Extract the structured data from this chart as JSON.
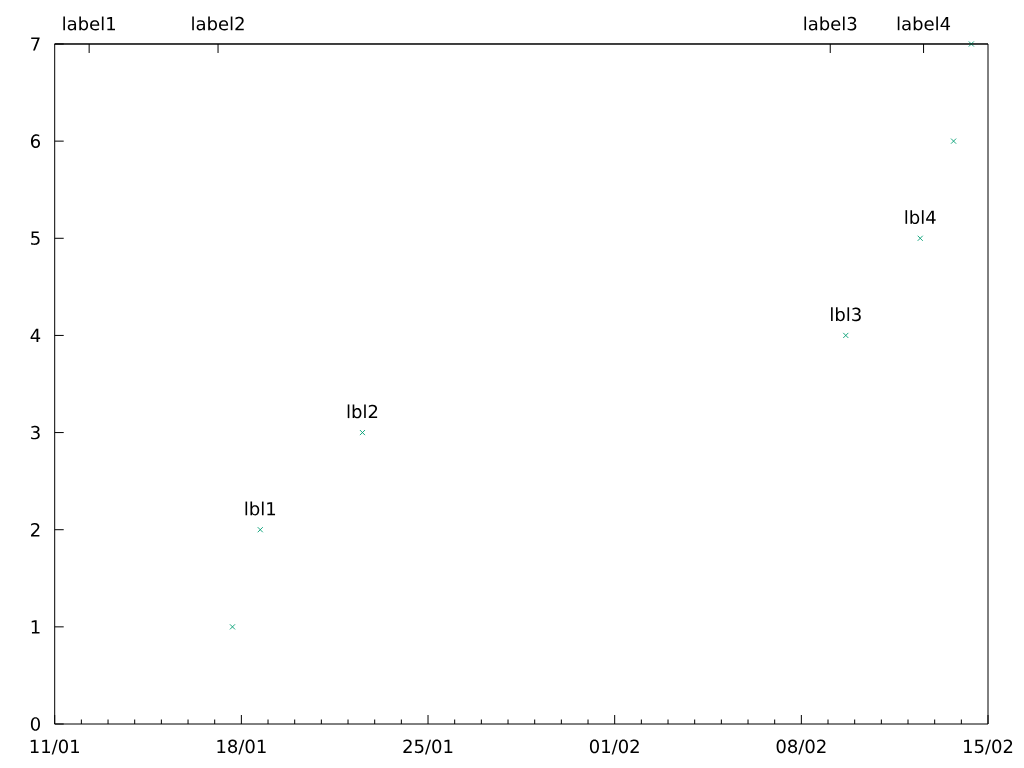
{
  "chart_data": {
    "type": "scatter",
    "x": [
      "--01-17T16:00",
      "--01-18T17:00",
      "--01-22T13:00",
      "--02-09T16:00",
      "--02-12T11:00",
      "--02-13T17:00",
      "--02-14T09:00"
    ],
    "values": [
      1,
      2,
      3,
      4,
      5,
      6,
      7
    ],
    "color": "#009e73",
    "marker": "cross",
    "xlim": [
      "--01-11",
      "--02-15"
    ],
    "xticks": [
      {
        "value": "--01-11",
        "label": "11/01"
      },
      {
        "value": "--01-12",
        "label": null
      },
      {
        "value": "--01-13",
        "label": null
      },
      {
        "value": "--01-14",
        "label": null
      },
      {
        "value": "--01-15",
        "label": null
      },
      {
        "value": "--01-16",
        "label": null
      },
      {
        "value": "--01-17",
        "label": null
      },
      {
        "value": "--01-18",
        "label": "18/01"
      },
      {
        "value": "--01-19",
        "label": null
      },
      {
        "value": "--01-20",
        "label": null
      },
      {
        "value": "--01-21",
        "label": null
      },
      {
        "value": "--01-22",
        "label": null
      },
      {
        "value": "--01-23",
        "label": null
      },
      {
        "value": "--01-24",
        "label": null
      },
      {
        "value": "--01-25",
        "label": "25/01"
      },
      {
        "value": "--01-26",
        "label": null
      },
      {
        "value": "--01-27",
        "label": null
      },
      {
        "value": "--01-28",
        "label": null
      },
      {
        "value": "--01-29",
        "label": null
      },
      {
        "value": "--01-30",
        "label": null
      },
      {
        "value": "--01-31",
        "label": null
      },
      {
        "value": "--02-01",
        "label": "01/02"
      },
      {
        "value": "--02-02",
        "label": null
      },
      {
        "value": "--02-03",
        "label": null
      },
      {
        "value": "--02-04",
        "label": null
      },
      {
        "value": "--02-05",
        "label": null
      },
      {
        "value": "--02-06",
        "label": null
      },
      {
        "value": "--02-07",
        "label": null
      },
      {
        "value": "--02-08",
        "label": "08/02"
      },
      {
        "value": "--02-09",
        "label": null
      },
      {
        "value": "--02-10",
        "label": null
      },
      {
        "value": "--02-11",
        "label": null
      },
      {
        "value": "--02-12",
        "label": null
      },
      {
        "value": "--02-13",
        "label": null
      },
      {
        "value": "--02-14",
        "label": null
      },
      {
        "value": "--02-15",
        "label": "15/02"
      }
    ],
    "x2lim": [
      "--01-11",
      "--02-15"
    ],
    "x2ticks": [
      {
        "value": "--01-12T07:00",
        "label": "label1"
      },
      {
        "value": "--01-17T03:00",
        "label": "label2"
      },
      {
        "value": "--02-09T02:00",
        "label": "label3"
      },
      {
        "value": "--02-12T14:00",
        "label": "label4"
      }
    ],
    "ylim": [
      0,
      7
    ],
    "yticks": [
      0,
      1,
      2,
      3,
      4,
      5,
      6,
      7
    ],
    "annotations": [
      {
        "text": "lbl1",
        "x": "--01-18T17:00",
        "y": 2
      },
      {
        "text": "lbl2",
        "x": "--01-22T13:00",
        "y": 3
      },
      {
        "text": "lbl3",
        "x": "--02-09T16:00",
        "y": 4
      },
      {
        "text": "lbl4",
        "x": "--02-12T11:00",
        "y": 5
      }
    ]
  }
}
